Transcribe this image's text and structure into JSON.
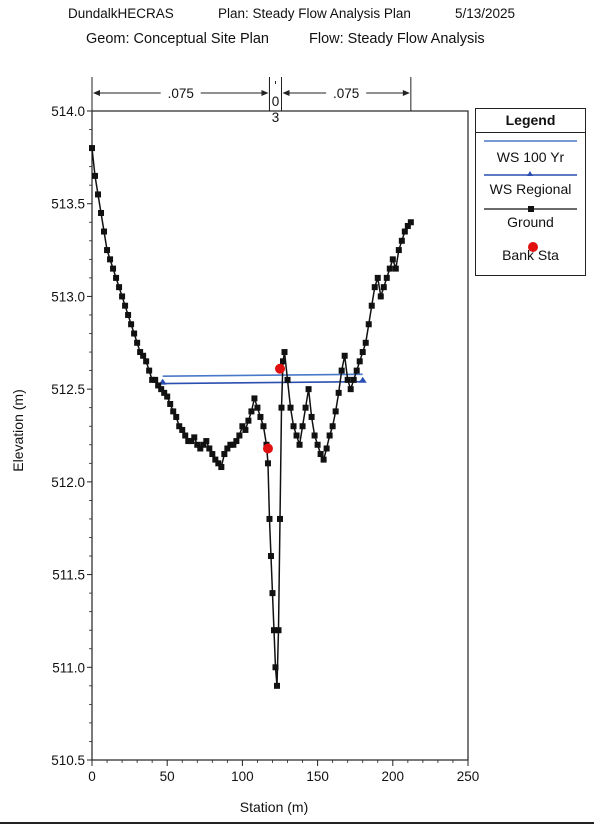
{
  "header": {
    "project": "DundalkHECRAS",
    "plan": "Plan: Steady Flow Analysis Plan",
    "date": "5/13/2025",
    "geom": "Geom: Conceptual Site Plan",
    "flow": "Flow: Steady Flow Analysis"
  },
  "legend": {
    "title": "Legend",
    "entries": [
      {
        "label": "WS 100 Yr",
        "color": "#4a78c8",
        "marker": "triangle"
      },
      {
        "label": "WS Regional",
        "color": "#2a4fb0",
        "marker": "none"
      },
      {
        "label": "Ground",
        "color": "#111111",
        "marker": "square"
      },
      {
        "label": "Bank Sta",
        "color": "#e01010",
        "marker": "circle"
      }
    ]
  },
  "chart_data": {
    "type": "line",
    "xlabel": "Station (m)",
    "ylabel": "Elevation (m)",
    "xlim": [
      0,
      250
    ],
    "ylim": [
      510.5,
      514.0
    ],
    "x_ticks": [
      0,
      50,
      100,
      150,
      200,
      250
    ],
    "y_ticks": [
      510.5,
      511.0,
      511.5,
      512.0,
      512.5,
      513.0,
      513.5,
      514.0
    ],
    "y_tick_labels": [
      "510.5",
      "511.0",
      "511.5",
      "512.0",
      "512.5",
      "513.0",
      "513.5",
      "514.0"
    ],
    "mannings": [
      {
        "label": ".075",
        "from": 0,
        "to": 118
      },
      {
        "label": "0\n3",
        "from": 118,
        "to": 126
      },
      {
        "label": ".075",
        "from": 126,
        "to": 212
      }
    ],
    "series": [
      {
        "name": "Ground",
        "x": [
          0,
          2,
          4,
          6,
          8,
          10,
          12,
          14,
          16,
          18,
          20,
          22,
          24,
          26,
          28,
          30,
          32,
          34,
          36,
          38,
          40,
          42,
          44,
          46,
          48,
          50,
          52,
          54,
          56,
          58,
          60,
          62,
          64,
          66,
          68,
          70,
          72,
          74,
          76,
          78,
          80,
          82,
          84,
          86,
          88,
          90,
          92,
          94,
          96,
          98,
          100,
          102,
          104,
          106,
          108,
          110,
          112,
          114,
          116,
          117,
          118,
          119,
          120,
          121,
          122,
          123,
          124,
          125,
          126,
          127,
          128,
          130,
          132,
          134,
          136,
          138,
          140,
          142,
          144,
          146,
          148,
          150,
          152,
          154,
          156,
          158,
          160,
          162,
          164,
          166,
          168,
          170,
          172,
          174,
          176,
          178,
          180,
          182,
          184,
          186,
          188,
          190,
          192,
          194,
          196,
          198,
          200,
          202,
          204,
          206,
          208,
          210,
          212
        ],
        "y": [
          513.8,
          513.65,
          513.55,
          513.45,
          513.35,
          513.25,
          513.2,
          513.15,
          513.1,
          513.05,
          513.0,
          512.95,
          512.9,
          512.85,
          512.8,
          512.75,
          512.7,
          512.68,
          512.65,
          512.6,
          512.55,
          512.55,
          512.52,
          512.5,
          512.48,
          512.46,
          512.42,
          512.38,
          512.35,
          512.3,
          512.28,
          512.25,
          512.22,
          512.22,
          512.24,
          512.2,
          512.18,
          512.2,
          512.22,
          512.18,
          512.15,
          512.12,
          512.1,
          512.08,
          512.15,
          512.18,
          512.2,
          512.2,
          512.22,
          512.25,
          512.3,
          512.28,
          512.33,
          512.38,
          512.45,
          512.4,
          512.35,
          512.3,
          512.2,
          512.1,
          511.8,
          511.6,
          511.4,
          511.2,
          511.0,
          510.9,
          511.2,
          511.8,
          512.4,
          512.65,
          512.7,
          512.55,
          512.4,
          512.3,
          512.25,
          512.2,
          512.3,
          512.4,
          512.5,
          512.35,
          512.25,
          512.2,
          512.15,
          512.12,
          512.18,
          512.25,
          512.3,
          512.38,
          512.48,
          512.6,
          512.68,
          512.55,
          512.5,
          512.55,
          512.6,
          512.65,
          512.7,
          512.75,
          512.85,
          512.95,
          513.05,
          513.1,
          513.0,
          513.05,
          513.1,
          513.15,
          513.2,
          513.15,
          513.25,
          513.3,
          513.35,
          513.38,
          513.4
        ]
      },
      {
        "name": "WS 100 Yr",
        "x": [
          47,
          180
        ],
        "y": [
          512.57,
          512.58
        ]
      },
      {
        "name": "WS Regional",
        "x": [
          47,
          180
        ],
        "y": [
          512.53,
          512.54
        ]
      },
      {
        "name": "Bank Sta",
        "x": [
          117,
          125
        ],
        "y": [
          512.18,
          512.61
        ]
      }
    ]
  }
}
